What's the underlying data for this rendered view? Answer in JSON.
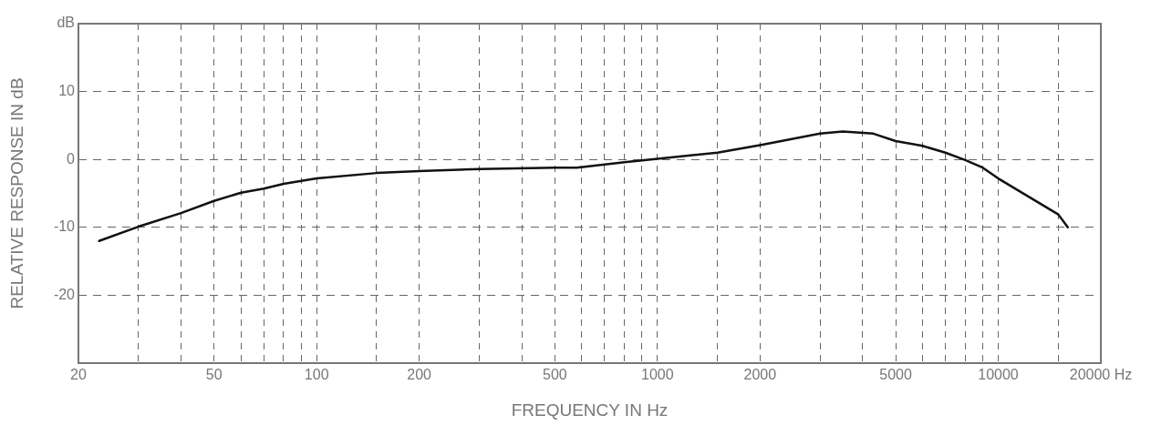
{
  "chart_data": {
    "type": "line",
    "xlabel": "FREQUENCY IN Hz",
    "ylabel": "RELATIVE RESPONSE IN dB",
    "x": [
      23,
      30,
      40,
      50,
      60,
      70,
      80,
      100,
      150,
      200,
      300,
      500,
      580,
      800,
      1000,
      1500,
      2000,
      3000,
      3500,
      4300,
      5000,
      6000,
      7000,
      8000,
      9000,
      10000,
      15000,
      16000
    ],
    "series": [
      {
        "color": "#111111",
        "values": [
          -12,
          -9.9,
          -7.9,
          -6.1,
          -4.9,
          -4.3,
          -3.6,
          -2.8,
          -2.0,
          -1.7,
          -1.4,
          -1.2,
          -1.2,
          -0.4,
          0.1,
          1.0,
          2.1,
          3.8,
          4.1,
          3.8,
          2.7,
          2.0,
          1.0,
          -0.1,
          -1.2,
          -2.8,
          -8.1,
          -10
        ]
      }
    ],
    "log": "x",
    "xlim": [
      20,
      20000
    ],
    "ylim": [
      -30,
      20
    ],
    "xticks": [
      20,
      {
        "value": 30,
        "label": null
      },
      {
        "value": 40,
        "label": null
      },
      50,
      {
        "value": 60,
        "label": null
      },
      {
        "value": 70,
        "label": null
      },
      {
        "value": 80,
        "label": null
      },
      {
        "value": 90,
        "label": null
      },
      100,
      {
        "value": 150,
        "label": null
      },
      200,
      {
        "value": 300,
        "label": null
      },
      {
        "value": 400,
        "label": null
      },
      500,
      {
        "value": 600,
        "label": null
      },
      {
        "value": 700,
        "label": null
      },
      {
        "value": 800,
        "label": null
      },
      {
        "value": 900,
        "label": null
      },
      1000,
      {
        "value": 1500,
        "label": null
      },
      2000,
      {
        "value": 3000,
        "label": null
      },
      {
        "value": 4000,
        "label": null
      },
      5000,
      {
        "value": 6000,
        "label": null
      },
      {
        "value": 7000,
        "label": null
      },
      {
        "value": 8000,
        "label": null
      },
      {
        "value": 9000,
        "label": null
      },
      10000,
      {
        "value": 15000,
        "label": null
      },
      {
        "value": 20000,
        "label": "20000 Hz"
      }
    ],
    "yticks": [
      {
        "value": -30,
        "label": null
      },
      -20,
      -10,
      0,
      10,
      {
        "value": 20,
        "label": "dB"
      }
    ],
    "grid": true,
    "marker": "none",
    "line_style": "solid"
  }
}
